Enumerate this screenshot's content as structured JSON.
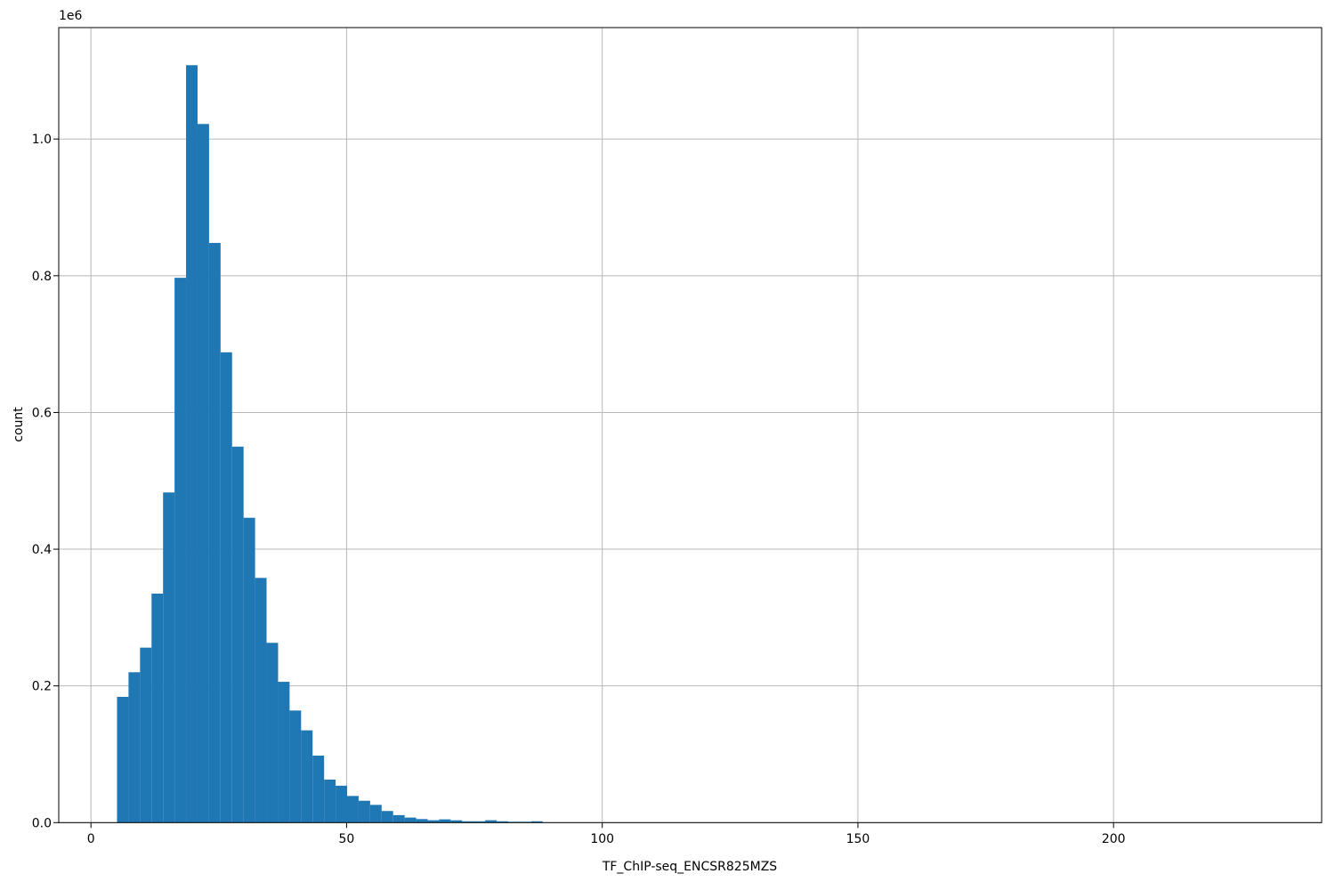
{
  "figure": {
    "background_color": "#ffffff"
  },
  "chart_data": {
    "type": "bar",
    "subtype": "histogram",
    "title": "",
    "xlabel": "TF_ChIP-seq_ENCSR825MZS",
    "ylabel": "count",
    "y_offset_label": "1e6",
    "bar_color": "#1f77b4",
    "grid_color": "#b8b8b8",
    "spine_color": "#000000",
    "text_color": "#000000",
    "grid": true,
    "legend": false,
    "xlim": [
      -6.3,
      240.7
    ],
    "ylim": [
      0,
      1163000
    ],
    "x_ticks": [
      0,
      50,
      100,
      150,
      200
    ],
    "x_tick_labels": [
      "0",
      "50",
      "100",
      "150",
      "200"
    ],
    "y_ticks": [
      0,
      200000,
      400000,
      600000,
      800000,
      1000000
    ],
    "y_tick_labels": [
      "0.0",
      "0.2",
      "0.4",
      "0.6",
      "0.8",
      "1.0"
    ],
    "bins": {
      "start": 5.1,
      "width": 2.25
    },
    "counts": [
      184000,
      220000,
      256000,
      335000,
      483000,
      797000,
      1108000,
      1022000,
      848000,
      688000,
      550000,
      446000,
      358000,
      263000,
      206000,
      164000,
      135000,
      98000,
      63000,
      54000,
      39000,
      32000,
      26000,
      17000,
      11000,
      7400,
      5200,
      3500,
      4800,
      3400,
      2000,
      2000,
      3500,
      2000,
      1300,
      1300,
      2000
    ]
  }
}
